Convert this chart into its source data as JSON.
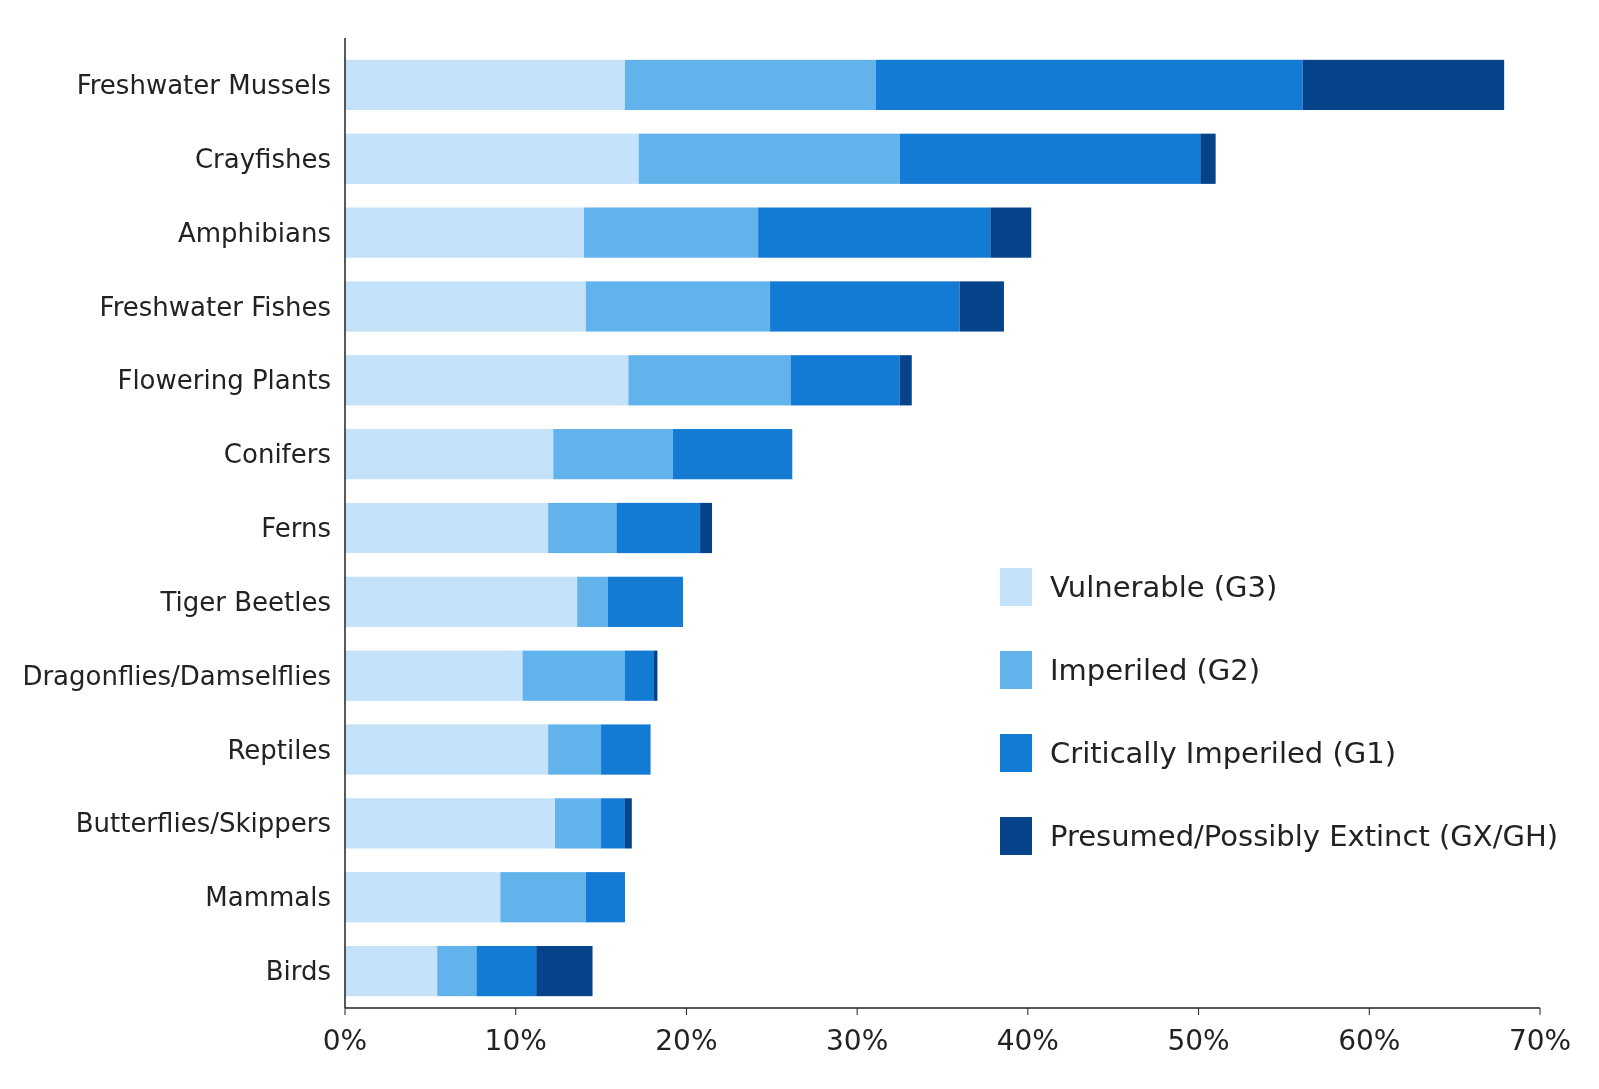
{
  "chart_data": {
    "type": "bar",
    "orientation": "horizontal",
    "stacked": true,
    "categories": [
      "Freshwater Mussels",
      "Crayfishes",
      "Amphibians",
      "Freshwater Fishes",
      "Flowering Plants",
      "Conifers",
      "Ferns",
      "Tiger Beetles",
      "Dragonflies/Damselflies",
      "Reptiles",
      "Butterflies/Skippers",
      "Mammals",
      "Birds"
    ],
    "series": [
      {
        "name": "Vulnerable (G3)",
        "color": "#c4e2f9",
        "values": [
          16.4,
          17.2,
          14.0,
          14.1,
          16.6,
          12.2,
          11.9,
          13.6,
          10.4,
          11.9,
          12.3,
          9.1,
          5.4
        ]
      },
      {
        "name": "Imperiled (G2)",
        "color": "#62b2ec",
        "values": [
          14.7,
          15.3,
          10.2,
          10.8,
          9.5,
          7.0,
          4.0,
          1.8,
          6.0,
          3.1,
          2.7,
          5.0,
          2.3
        ]
      },
      {
        "name": "Critically Imperiled (G1)",
        "color": "#137bd3",
        "values": [
          25.0,
          17.6,
          13.6,
          11.1,
          6.4,
          7.0,
          4.9,
          4.4,
          1.7,
          2.9,
          1.4,
          2.3,
          3.5
        ]
      },
      {
        "name": "Presumed/Possibly Extinct (GX/GH)",
        "color": "#06438a",
        "values": [
          11.8,
          0.9,
          2.4,
          2.6,
          0.7,
          0,
          0.7,
          0,
          0.2,
          0,
          0.4,
          0,
          3.3
        ]
      }
    ],
    "xlim": [
      0,
      70
    ],
    "xticks": [
      {
        "value": 0,
        "label": "0%"
      },
      {
        "value": 10,
        "label": "10%"
      },
      {
        "value": 20,
        "label": "20%"
      },
      {
        "value": 30,
        "label": "30%"
      },
      {
        "value": 40,
        "label": "40%"
      },
      {
        "value": 50,
        "label": "50%"
      },
      {
        "value": 60,
        "label": "60%"
      },
      {
        "value": 70,
        "label": "70%"
      }
    ],
    "legend": "bottom right",
    "grid": false
  }
}
